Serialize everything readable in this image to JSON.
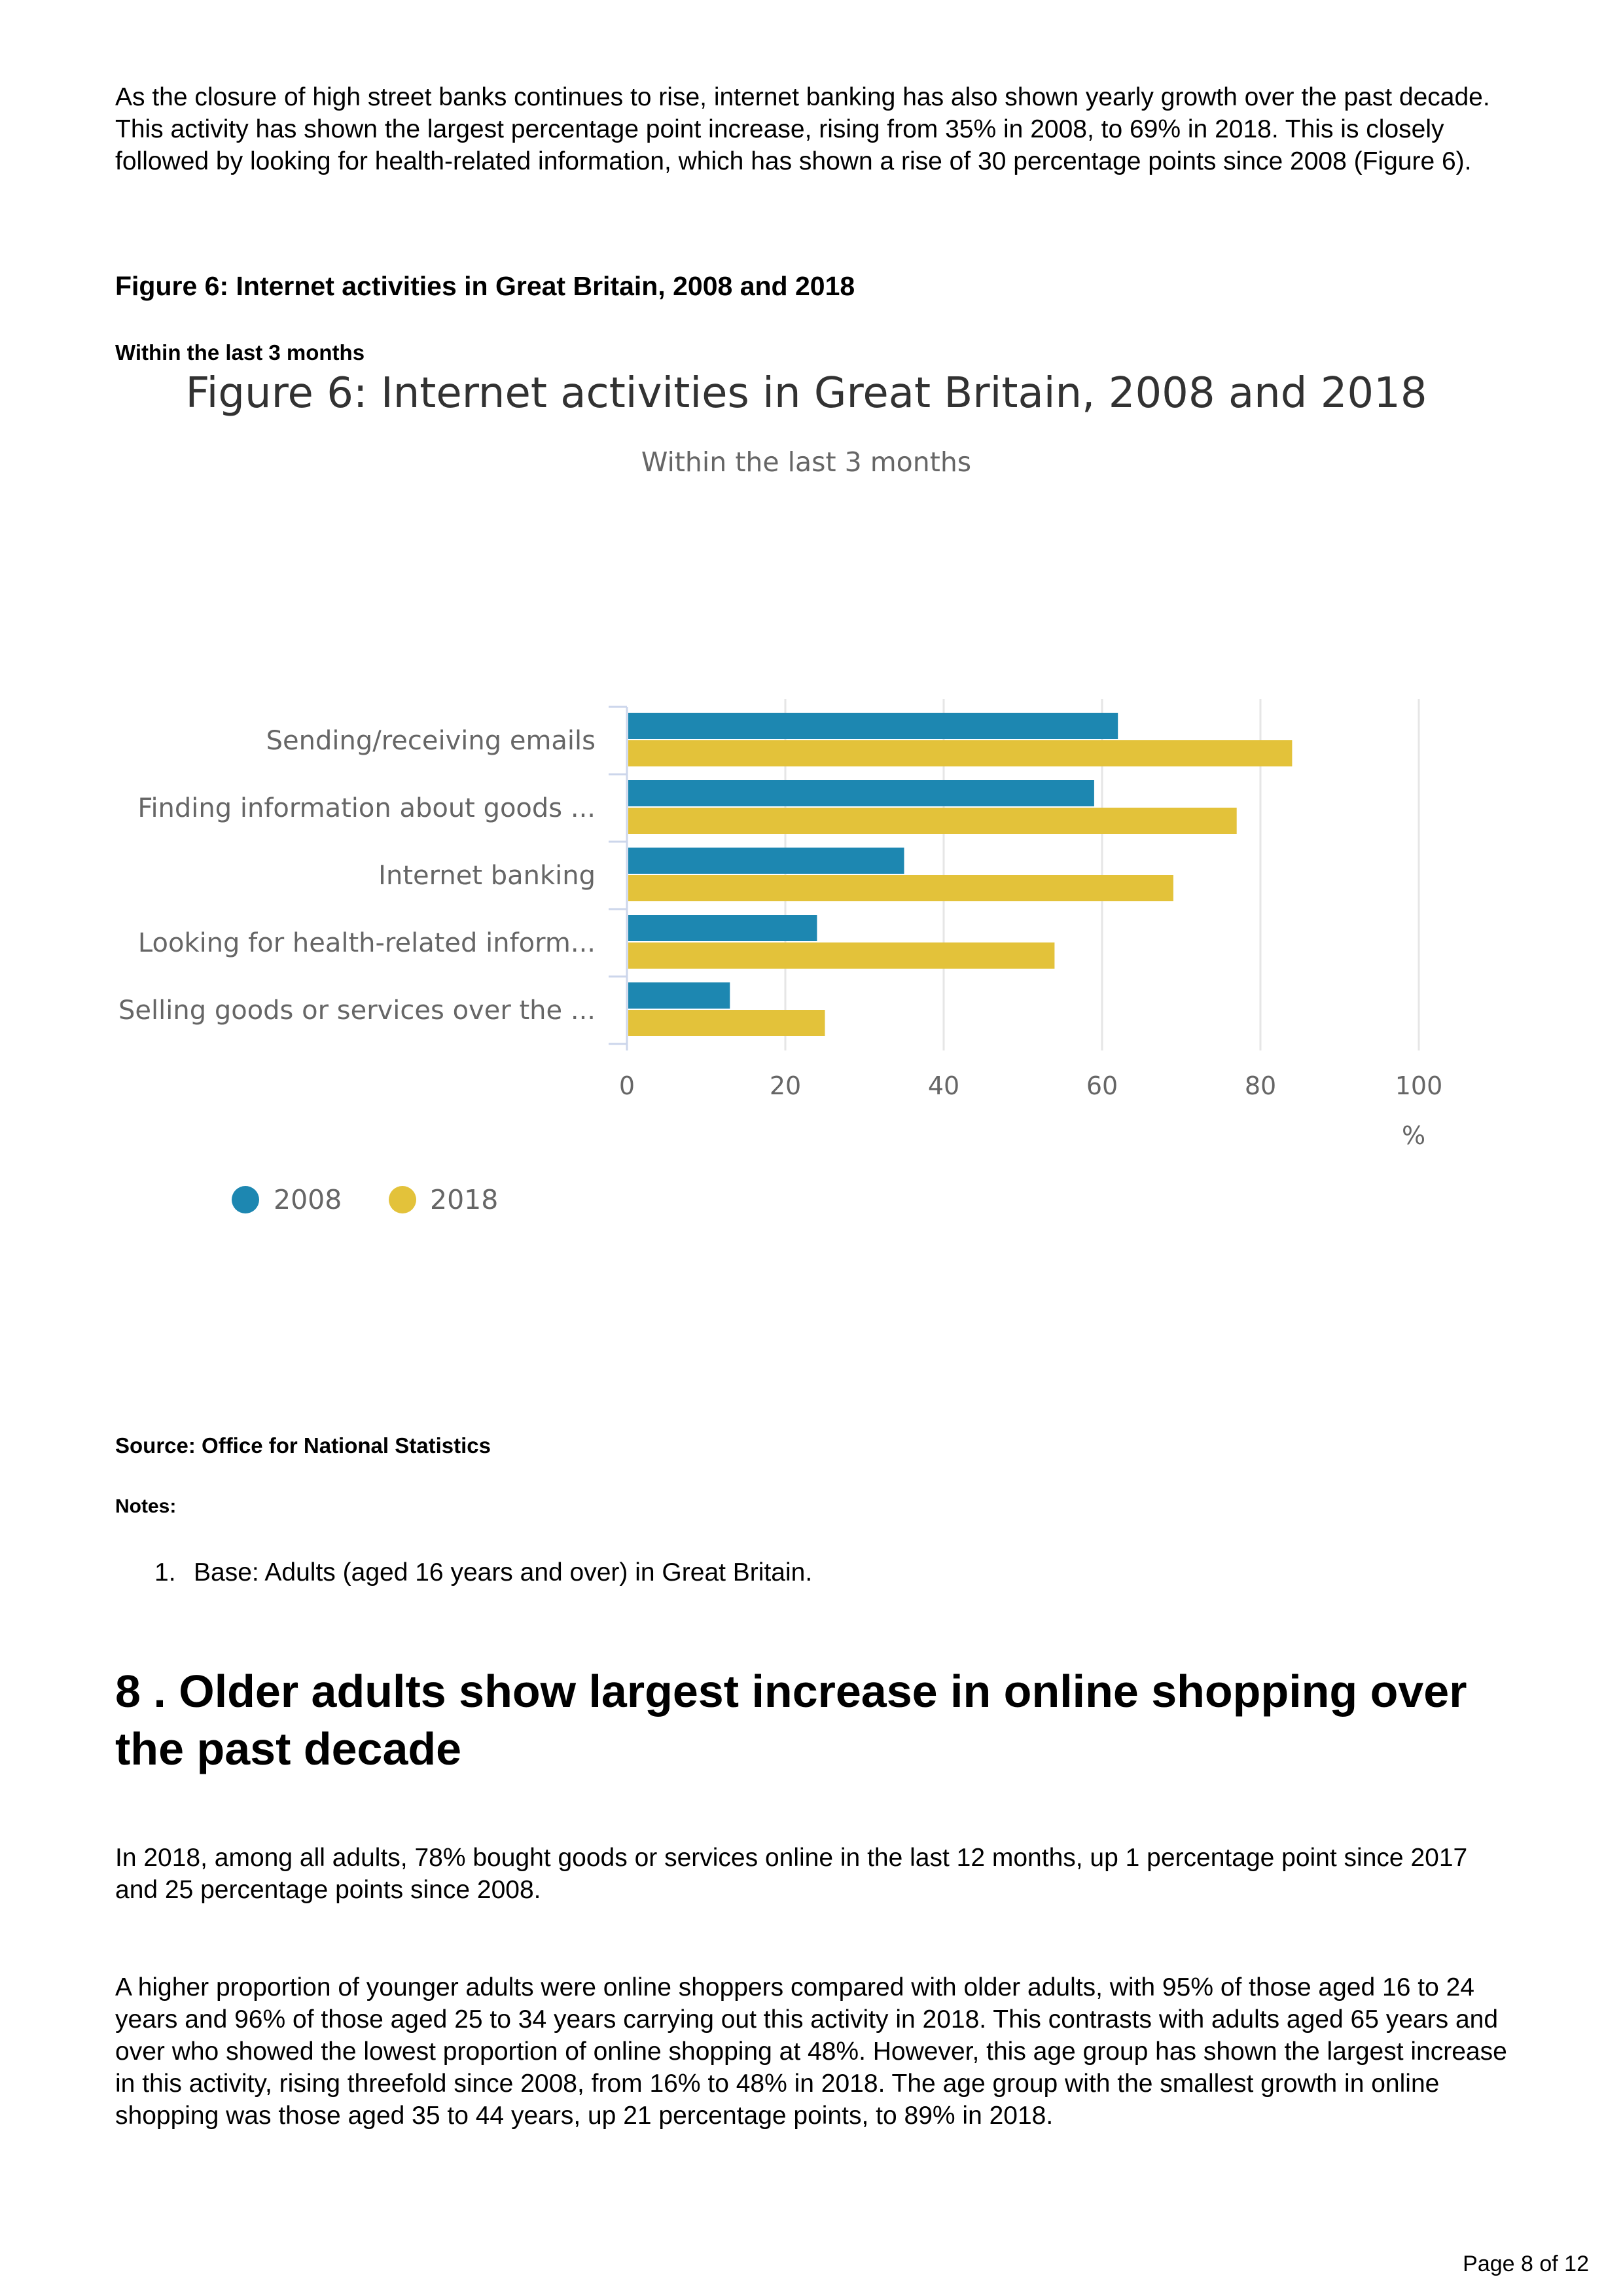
{
  "intro_paragraph": "As the closure of high street banks continues to rise, internet banking has also shown yearly growth over the past decade. This activity has shown the largest percentage point increase, rising from 35% in 2008, to 69% in 2018. This is closely followed by looking for health-related information, which has shown a rise of 30 percentage points since 2008 (Figure 6).",
  "figure": {
    "title": "Figure 6: Internet activities in Great Britain, 2008 and 2018",
    "subtitle": "Within the last 3 months",
    "source": "Source: Office for National Statistics",
    "notes_label": "Notes:",
    "notes": [
      "Base: Adults (aged 16 years and over) in Great Britain."
    ]
  },
  "chart_data": {
    "type": "bar",
    "orientation": "horizontal",
    "title": "Figure 6: Internet activities in Great Britain, 2008 and 2018",
    "subtitle": "Within the last 3 months",
    "categories": [
      "Sending/receiving emails",
      "Finding information about goods ...",
      "Internet banking",
      "Looking for health-related inform...",
      "Selling goods or services over the ..."
    ],
    "series": [
      {
        "name": "2008",
        "color": "#1d87b1",
        "values": [
          62,
          59,
          35,
          24,
          13
        ]
      },
      {
        "name": "2018",
        "color": "#e3c23a",
        "values": [
          84,
          77,
          69,
          54,
          25
        ]
      }
    ],
    "xlabel": "%",
    "xlim": [
      0,
      100
    ],
    "xticks": [
      "0",
      "20",
      "40",
      "60",
      "80",
      "100"
    ],
    "grid": true,
    "legend_position": "bottom-left"
  },
  "section": {
    "heading": "8 . Older adults show largest increase in online shopping over the past decade",
    "paragraph_1": "In 2018, among all adults, 78% bought goods or services online in the last 12 months, up 1 percentage point since 2017 and 25 percentage points since 2008.",
    "paragraph_2": "A higher proportion of younger adults were online shoppers compared with older adults, with 95% of those aged 16 to 24 years and 96% of those aged 25 to 34 years carrying out this activity in 2018. This contrasts with adults aged 65 years and over who showed the lowest proportion of online shopping at 48%. However, this age group has shown the largest increase in this activity, rising threefold since 2008, from 16% to 48% in 2018. The age group with the smallest growth in online shopping was those aged 35 to 44 years, up 21 percentage points, to 89% in 2018."
  },
  "footer": {
    "page_label": "Page 8 of 12"
  }
}
